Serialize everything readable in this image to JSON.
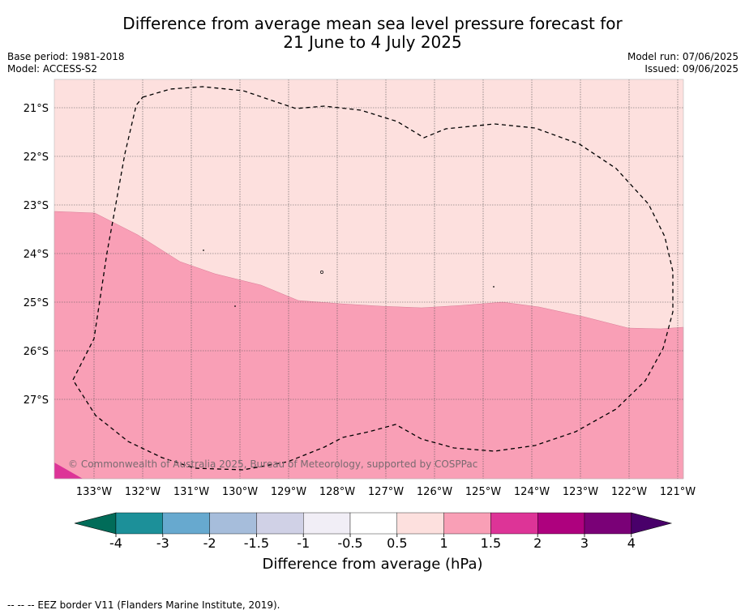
{
  "header": {
    "title_line1": "Difference from average mean sea level pressure forecast for",
    "title_line2": "21 June to 4 July 2025",
    "base_period": "Base period: 1981-2018",
    "model": "Model: ACCESS-S2",
    "model_run": "Model run: 07/06/2025",
    "issued": "Issued: 09/06/2025"
  },
  "map": {
    "lon_labels": [
      "133°W",
      "132°W",
      "131°W",
      "130°W",
      "129°W",
      "128°W",
      "127°W",
      "126°W",
      "125°W",
      "124°W",
      "123°W",
      "122°W",
      "121°W"
    ],
    "lat_labels": [
      "21°S",
      "22°S",
      "23°S",
      "24°S",
      "25°S",
      "26°S",
      "27°S"
    ],
    "copyright": "© Commonwealth of Australia 2025, Bureau of Meteorology, supported by COSPPac",
    "colors": {
      "class_0p5_1": "#fde0de",
      "class_1_1p5": "#f99fb6",
      "class_1p5_2": "#dd3497"
    }
  },
  "colorbar": {
    "ticks": [
      "-4",
      "-3",
      "-2",
      "-1.5",
      "-1",
      "-0.5",
      "0.5",
      "1",
      "1.5",
      "2",
      "3",
      "4"
    ],
    "colors": [
      "#016c59",
      "#1c9099",
      "#67a9cf",
      "#a6bddb",
      "#d0d1e6",
      "#f1eef6",
      "#ffffff",
      "#fde0de",
      "#f99fb6",
      "#dd3497",
      "#ae017e",
      "#7a0177",
      "#49006a"
    ],
    "label": "Difference from average (hPa)"
  },
  "footnote": "--  --  -- EEZ border V11 (Flanders Marine Institute, 2019)."
}
